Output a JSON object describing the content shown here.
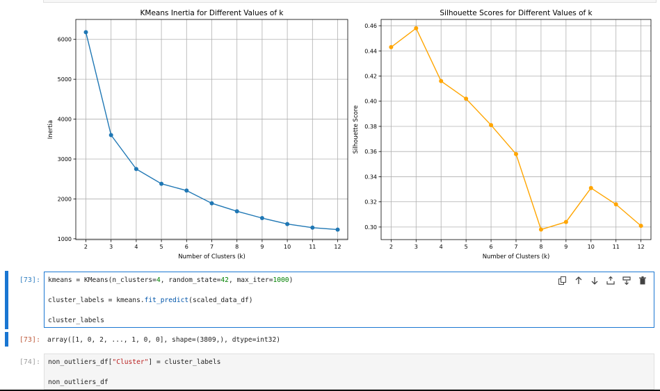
{
  "charts": [
    {
      "title": "KMeans Inertia for Different Values of k",
      "xlabel": "Number of Clusters (k)",
      "ylabel": "Inertia",
      "color": "#1f77b4",
      "yticks": [
        1000,
        2000,
        3000,
        4000,
        5000,
        6000
      ]
    },
    {
      "title": "Silhouette Scores for Different Values of k",
      "xlabel": "Number of Clusters (k)",
      "ylabel": "Silhouette Score",
      "color": "#ffa500",
      "yticks": [
        "0.30",
        "0.32",
        "0.34",
        "0.36",
        "0.38",
        "0.40",
        "0.42",
        "0.44",
        "0.46"
      ]
    }
  ],
  "chart_data": [
    {
      "type": "line",
      "title": "KMeans Inertia for Different Values of k",
      "xlabel": "Number of Clusters (k)",
      "ylabel": "Inertia",
      "x": [
        2,
        3,
        4,
        5,
        6,
        7,
        8,
        9,
        10,
        11,
        12
      ],
      "values": [
        6180,
        3600,
        2750,
        2380,
        2210,
        1890,
        1690,
        1520,
        1370,
        1280,
        1230
      ],
      "xlim": [
        1.6,
        12.4
      ],
      "ylim": [
        980,
        6500
      ],
      "grid": true
    },
    {
      "type": "line",
      "title": "Silhouette Scores for Different Values of k",
      "xlabel": "Number of Clusters (k)",
      "ylabel": "Silhouette Score",
      "x": [
        2,
        3,
        4,
        5,
        6,
        7,
        8,
        9,
        10,
        11,
        12
      ],
      "values": [
        0.443,
        0.458,
        0.416,
        0.402,
        0.381,
        0.358,
        0.298,
        0.304,
        0.331,
        0.318,
        0.301
      ],
      "xlim": [
        1.6,
        12.4
      ],
      "ylim": [
        0.29,
        0.465
      ],
      "grid": true
    }
  ],
  "cells": {
    "cell73": {
      "prompt": "[73]:",
      "line1": {
        "a": "kmeans = KMeans(n_clusters=",
        "n1": "4",
        "b": ", random_state=",
        "n2": "42",
        "c": ", max_iter=",
        "n3": "1000",
        "d": ")"
      },
      "line2": {
        "a": "cluster_labels = kmeans.",
        "fn": "fit_predict",
        "b": "(scaled_data_df)"
      },
      "line3": "cluster_labels"
    },
    "out73": {
      "prompt": "[73]:",
      "text": "array([1, 0, 2, ..., 1, 0, 0], shape=(3809,), dtype=int32)"
    },
    "cell74": {
      "prompt": "[74]:",
      "line1": {
        "a": "non_outliers_df[",
        "str": "\"Cluster\"",
        "b": "] = cluster_labels"
      },
      "line2": "non_outliers_df"
    }
  },
  "toolbar": [
    {
      "name": "duplicate-cell-icon",
      "glyph": "⧉"
    },
    {
      "name": "move-up-icon",
      "glyph": "↑"
    },
    {
      "name": "move-down-icon",
      "glyph": "↓"
    },
    {
      "name": "insert-above-icon",
      "glyph": "⤒"
    },
    {
      "name": "insert-below-icon",
      "glyph": "⤓"
    },
    {
      "name": "delete-cell-icon",
      "glyph": "🗑"
    }
  ]
}
